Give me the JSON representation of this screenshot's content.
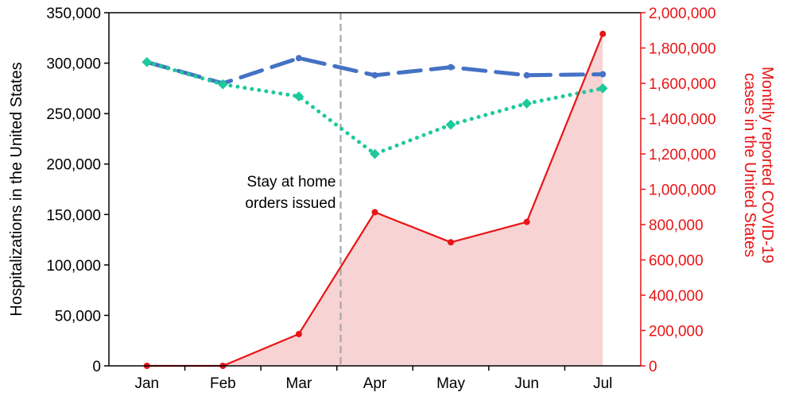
{
  "chart_data": {
    "type": "line",
    "categories": [
      "Jan",
      "Feb",
      "Mar",
      "Apr",
      "May",
      "Jun",
      "Jul"
    ],
    "left_axis": {
      "label": "Hospitalizations in the United States",
      "ylim": [
        0,
        350000
      ],
      "ticks": [
        0,
        50000,
        100000,
        150000,
        200000,
        250000,
        300000,
        350000
      ],
      "tick_labels": [
        "0",
        "50,000",
        "100,000",
        "150,000",
        "200,000",
        "250,000",
        "300,000",
        "350,000"
      ],
      "color": "#000000"
    },
    "right_axis": {
      "label_line1": "Monthly reported COVID-19",
      "label_line2": "cases in the United States",
      "ylim": [
        0,
        2000000
      ],
      "ticks": [
        0,
        200000,
        400000,
        600000,
        800000,
        1000000,
        1200000,
        1400000,
        1600000,
        1800000,
        2000000
      ],
      "tick_labels": [
        "0",
        "200,000",
        "400,000",
        "600,000",
        "800,000",
        "1,000,000",
        "1,200,000",
        "1,400,000",
        "1,600,000",
        "1,800,000",
        "2,000,000"
      ],
      "color": "#e81416"
    },
    "series": [
      {
        "axis": "left",
        "style": "dashed",
        "color": "#4472c4",
        "values": [
          301000,
          280000,
          305000,
          288000,
          296000,
          288000,
          289000
        ]
      },
      {
        "axis": "left",
        "style": "dotted",
        "color": "#1ec99b",
        "values": [
          301000,
          279000,
          267000,
          210000,
          239000,
          260000,
          275000
        ]
      },
      {
        "axis": "right",
        "style": "solid-area",
        "color": "#e81416",
        "fill": "#f8d3d3",
        "values": [
          0,
          0,
          180000,
          870000,
          700000,
          815000,
          1880000
        ]
      }
    ],
    "annotations": [
      {
        "text_line1": "Stay at home",
        "text_line2": "orders issued",
        "x_between": [
          "Mar",
          "Apr"
        ],
        "fraction": 0.55,
        "line_color": "#a6a6a6"
      }
    ],
    "grid": false,
    "legend": "none"
  }
}
